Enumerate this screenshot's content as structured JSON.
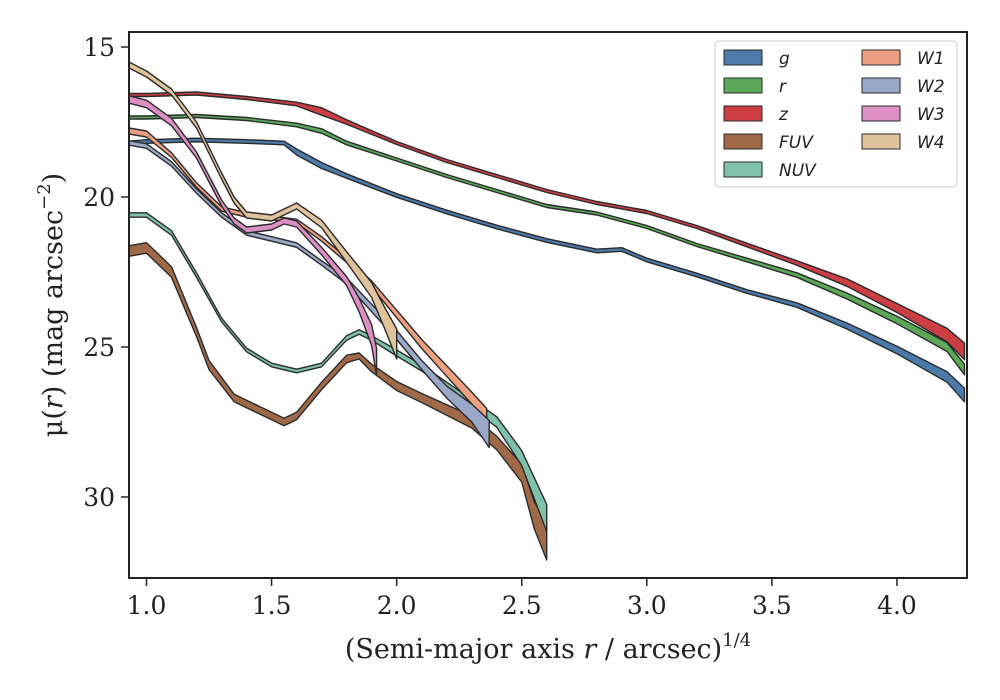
{
  "chart_data": {
    "type": "area",
    "xlabel_main": "(Semi-major axis ",
    "xlabel_var": "r",
    "xlabel_tail": " / arcsec)",
    "xlabel_sup": "1/4",
    "ylabel_main": "μ(",
    "ylabel_var": "r",
    "ylabel_tail": ") (mag arcsec",
    "ylabel_sup": "−2",
    "ylabel_close": ")",
    "xlim": [
      0.93,
      4.28
    ],
    "ylim": [
      32.7,
      14.5
    ],
    "y_inverted": true,
    "xticks": [
      "1.0",
      "1.5",
      "2.0",
      "2.5",
      "3.0",
      "3.5",
      "4.0"
    ],
    "xtick_values": [
      1.0,
      1.5,
      2.0,
      2.5,
      3.0,
      3.5,
      4.0
    ],
    "yticks": [
      "15",
      "20",
      "25",
      "30"
    ],
    "ytick_values": [
      15,
      20,
      25,
      30
    ],
    "grid": false,
    "legend_position": "top-right",
    "legend_columns": 2,
    "series": [
      {
        "name": "g",
        "color": "#4c7aab",
        "x": [
          0.93,
          1.0,
          1.2,
          1.4,
          1.55,
          1.6,
          1.7,
          1.8,
          2.0,
          2.2,
          2.4,
          2.6,
          2.8,
          2.9,
          3.0,
          3.2,
          3.4,
          3.6,
          3.8,
          4.0,
          4.2,
          4.27
        ],
        "y": [
          18.2,
          18.15,
          18.1,
          18.15,
          18.2,
          18.5,
          18.95,
          19.3,
          19.95,
          20.5,
          21.0,
          21.45,
          21.8,
          21.75,
          22.1,
          22.6,
          23.15,
          23.6,
          24.3,
          25.1,
          26.0,
          26.6
        ],
        "w": [
          0.12,
          0.12,
          0.12,
          0.12,
          0.12,
          0.2,
          0.2,
          0.15,
          0.12,
          0.12,
          0.12,
          0.12,
          0.12,
          0.12,
          0.12,
          0.12,
          0.12,
          0.15,
          0.2,
          0.25,
          0.35,
          0.45
        ]
      },
      {
        "name": "r",
        "color": "#5aa858",
        "x": [
          0.93,
          1.0,
          1.2,
          1.4,
          1.6,
          1.7,
          1.8,
          2.0,
          2.2,
          2.4,
          2.6,
          2.8,
          3.0,
          3.2,
          3.4,
          3.6,
          3.8,
          4.0,
          4.2,
          4.27
        ],
        "y": [
          17.35,
          17.35,
          17.3,
          17.4,
          17.6,
          17.8,
          18.2,
          18.75,
          19.3,
          19.8,
          20.3,
          20.55,
          21.0,
          21.6,
          22.1,
          22.6,
          23.3,
          24.1,
          25.0,
          25.75
        ],
        "w": [
          0.1,
          0.1,
          0.1,
          0.1,
          0.12,
          0.15,
          0.12,
          0.1,
          0.1,
          0.1,
          0.1,
          0.1,
          0.1,
          0.1,
          0.12,
          0.15,
          0.2,
          0.25,
          0.3,
          0.35
        ]
      },
      {
        "name": "z",
        "color": "#cc3d44",
        "x": [
          0.93,
          1.0,
          1.2,
          1.4,
          1.6,
          1.7,
          1.8,
          2.0,
          2.2,
          2.4,
          2.6,
          2.8,
          3.0,
          3.2,
          3.4,
          3.6,
          3.8,
          4.0,
          4.2,
          4.27
        ],
        "y": [
          16.6,
          16.6,
          16.55,
          16.7,
          16.9,
          17.15,
          17.5,
          18.2,
          18.8,
          19.3,
          19.8,
          20.2,
          20.5,
          21.0,
          21.6,
          22.2,
          22.85,
          23.7,
          24.6,
          25.15
        ],
        "w": [
          0.1,
          0.1,
          0.1,
          0.1,
          0.12,
          0.25,
          0.15,
          0.1,
          0.1,
          0.1,
          0.1,
          0.1,
          0.1,
          0.1,
          0.12,
          0.15,
          0.25,
          0.3,
          0.45,
          0.55
        ]
      },
      {
        "name": "FUV",
        "color": "#a06a48",
        "x": [
          0.93,
          1.0,
          1.1,
          1.2,
          1.25,
          1.35,
          1.45,
          1.55,
          1.6,
          1.7,
          1.8,
          1.85,
          1.9,
          2.0,
          2.1,
          2.2,
          2.3,
          2.4,
          2.5,
          2.55,
          2.6
        ],
        "y": [
          21.8,
          21.7,
          22.5,
          24.5,
          25.6,
          26.7,
          27.1,
          27.5,
          27.3,
          26.3,
          25.4,
          25.3,
          25.7,
          26.3,
          26.7,
          27.1,
          27.5,
          28.2,
          29.2,
          30.6,
          31.5
        ],
        "w": [
          0.35,
          0.35,
          0.35,
          0.3,
          0.3,
          0.25,
          0.25,
          0.25,
          0.25,
          0.25,
          0.25,
          0.2,
          0.25,
          0.3,
          0.3,
          0.35,
          0.4,
          0.45,
          0.6,
          0.9,
          1.2
        ]
      },
      {
        "name": "NUV",
        "color": "#7fc1aa",
        "x": [
          0.93,
          1.0,
          1.1,
          1.2,
          1.3,
          1.4,
          1.5,
          1.6,
          1.7,
          1.8,
          1.85,
          1.9,
          2.0,
          2.1,
          2.2,
          2.3,
          2.4,
          2.5,
          2.55,
          2.6
        ],
        "y": [
          20.6,
          20.6,
          21.2,
          22.6,
          24.1,
          25.1,
          25.6,
          25.8,
          25.6,
          24.7,
          24.5,
          24.7,
          25.2,
          25.7,
          26.3,
          26.9,
          27.5,
          28.7,
          29.7,
          30.7
        ],
        "w": [
          0.15,
          0.15,
          0.15,
          0.15,
          0.12,
          0.12,
          0.12,
          0.12,
          0.12,
          0.15,
          0.15,
          0.15,
          0.2,
          0.2,
          0.25,
          0.3,
          0.35,
          0.5,
          0.7,
          0.9
        ]
      },
      {
        "name": "W1",
        "color": "#eda081",
        "x": [
          0.93,
          1.0,
          1.1,
          1.2,
          1.3,
          1.4,
          1.5,
          1.6,
          1.7,
          1.8,
          1.9,
          2.0,
          2.1,
          2.2,
          2.3,
          2.36
        ],
        "y": [
          17.8,
          17.9,
          18.6,
          19.6,
          20.4,
          20.6,
          20.7,
          20.8,
          21.4,
          22.1,
          22.9,
          23.9,
          24.9,
          25.8,
          26.7,
          27.3
        ],
        "w": [
          0.2,
          0.2,
          0.15,
          0.15,
          0.15,
          0.15,
          0.12,
          0.12,
          0.15,
          0.15,
          0.2,
          0.25,
          0.3,
          0.35,
          0.4,
          0.5
        ]
      },
      {
        "name": "W2",
        "color": "#9aa8c8",
        "x": [
          0.93,
          1.0,
          1.1,
          1.2,
          1.3,
          1.4,
          1.5,
          1.6,
          1.7,
          1.8,
          1.9,
          2.0,
          2.1,
          2.2,
          2.3,
          2.37
        ],
        "y": [
          18.2,
          18.3,
          18.9,
          19.8,
          20.6,
          21.2,
          21.4,
          21.6,
          22.2,
          22.8,
          23.7,
          24.6,
          25.6,
          26.5,
          27.2,
          27.9
        ],
        "w": [
          0.15,
          0.15,
          0.15,
          0.15,
          0.15,
          0.15,
          0.15,
          0.15,
          0.15,
          0.2,
          0.25,
          0.3,
          0.3,
          0.4,
          0.6,
          0.9
        ]
      },
      {
        "name": "W3",
        "color": "#dc8fc4",
        "x": [
          0.93,
          1.0,
          1.1,
          1.2,
          1.3,
          1.35,
          1.4,
          1.5,
          1.55,
          1.6,
          1.7,
          1.8,
          1.85,
          1.9,
          1.92
        ],
        "y": [
          16.75,
          16.9,
          17.5,
          18.6,
          20.2,
          20.8,
          21.1,
          21.0,
          20.8,
          20.9,
          21.8,
          22.8,
          23.6,
          24.6,
          25.5
        ],
        "w": [
          0.25,
          0.25,
          0.25,
          0.2,
          0.2,
          0.2,
          0.2,
          0.2,
          0.2,
          0.2,
          0.25,
          0.3,
          0.45,
          0.7,
          0.9
        ]
      },
      {
        "name": "W4",
        "color": "#dfc39c",
        "x": [
          0.93,
          1.0,
          1.1,
          1.2,
          1.3,
          1.35,
          1.4,
          1.5,
          1.6,
          1.7,
          1.8,
          1.9,
          1.95,
          2.0
        ],
        "y": [
          15.6,
          15.9,
          16.5,
          17.6,
          19.3,
          20.1,
          20.6,
          20.7,
          20.3,
          20.9,
          22.0,
          23.1,
          24.0,
          24.9
        ],
        "w": [
          0.2,
          0.2,
          0.2,
          0.2,
          0.2,
          0.2,
          0.2,
          0.2,
          0.2,
          0.25,
          0.35,
          0.5,
          0.7,
          1.0
        ]
      }
    ]
  }
}
